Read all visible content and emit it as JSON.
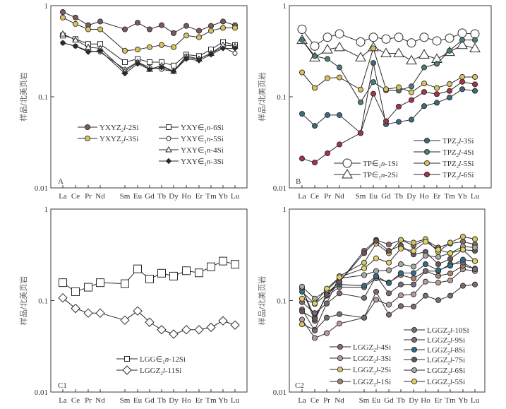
{
  "figure": {
    "y_axis_title": "样品/北美页岩"
  },
  "chart_data": [
    {
      "id": "A",
      "type": "line",
      "panel_label": "A",
      "yscale": "log",
      "ylim": [
        0.01,
        1
      ],
      "yticks": [
        "0.01",
        "0.1",
        "1"
      ],
      "ylabel": "样品/北美页岩",
      "xlabel": "",
      "categories": [
        "La",
        "Ce",
        "Pr",
        "Nd",
        "Sm",
        "Eu",
        "Gd",
        "Tb",
        "Dy",
        "Ho",
        "Er",
        "Tm",
        "Yb",
        "Lu"
      ],
      "legend_position": "center",
      "series": [
        {
          "name": "YXYZ2l-2Si",
          "label_parts": [
            "YXYZ",
            "2",
            "l",
            "-2Si"
          ],
          "marker": "circle-filled",
          "color": "#7a5a5c",
          "values": [
            0.85,
            0.74,
            0.61,
            0.67,
            0.55,
            0.65,
            0.55,
            0.61,
            0.5,
            0.6,
            0.53,
            0.6,
            0.67,
            0.61
          ]
        },
        {
          "name": "YXYZ2l-3Si",
          "label_parts": [
            "YXYZ",
            "2",
            "l",
            "-3Si"
          ],
          "marker": "circle-filled",
          "color": "#d9c25a",
          "values": [
            0.74,
            0.63,
            0.55,
            0.55,
            0.32,
            0.33,
            0.35,
            0.37,
            0.35,
            0.47,
            0.45,
            0.53,
            0.57,
            0.57
          ]
        },
        {
          "name": "YXY∈1n-6Si",
          "label_parts": [
            "YXY∈",
            "1",
            "n",
            "-6Si"
          ],
          "marker": "square-open",
          "color": "#ffffff",
          "values": [
            0.47,
            0.43,
            0.38,
            0.38,
            0.24,
            0.26,
            0.24,
            0.24,
            0.22,
            0.29,
            0.28,
            0.33,
            0.4,
            0.37
          ]
        },
        {
          "name": "YXY∈1n-5Si",
          "label_parts": [
            "YXY∈",
            "1",
            "n",
            "-5Si"
          ],
          "marker": "circle-open",
          "color": "#ffffff",
          "values": [
            0.39,
            0.36,
            0.32,
            0.31,
            0.2,
            0.24,
            0.21,
            0.2,
            0.19,
            0.28,
            0.26,
            0.3,
            0.35,
            0.3
          ]
        },
        {
          "name": "YXY∈1n-4Si",
          "label_parts": [
            "YXY∈",
            "1",
            "n",
            "-4Si"
          ],
          "marker": "triangle-open",
          "color": "#ffffff",
          "values": [
            0.49,
            0.42,
            0.35,
            0.34,
            0.19,
            0.24,
            0.2,
            0.22,
            0.19,
            0.27,
            0.26,
            0.3,
            0.37,
            0.36
          ]
        },
        {
          "name": "YXY∈1n-3Si",
          "label_parts": [
            "YXY∈",
            "1",
            "n",
            "-3Si"
          ],
          "marker": "diamond-filled",
          "color": "#2a2a2a",
          "values": [
            0.39,
            0.36,
            0.31,
            0.32,
            0.18,
            0.23,
            0.2,
            0.21,
            0.19,
            0.26,
            0.25,
            0.29,
            0.34,
            0.34
          ]
        }
      ]
    },
    {
      "id": "B",
      "type": "line",
      "panel_label": "B",
      "yscale": "log",
      "ylim": [
        0.01,
        1
      ],
      "yticks": [
        "0.01",
        "0.1",
        "1"
      ],
      "ylabel": "样品/北美页岩",
      "xlabel": "",
      "categories": [
        "La",
        "Ce",
        "Pr",
        "Nd",
        "Sm",
        "Eu",
        "Gd",
        "Tb",
        "Dy",
        "Ho",
        "Er",
        "Tm",
        "Yb",
        "Lu"
      ],
      "legend_position": "bottom-right",
      "series": [
        {
          "name": "TP∈1n-1Si",
          "label_parts": [
            "TP∈",
            "1",
            "n",
            "-1Si"
          ],
          "marker": "circle-open-large",
          "color": "#ffffff",
          "values": [
            0.55,
            0.36,
            0.45,
            0.49,
            0.4,
            0.45,
            0.43,
            0.45,
            0.39,
            0.45,
            0.41,
            0.44,
            0.5,
            0.49
          ]
        },
        {
          "name": "TP∈1n-2Si",
          "label_parts": [
            "TP∈",
            "1",
            "n",
            "-2Si"
          ],
          "marker": "triangle-open-large",
          "color": "#ffffff",
          "values": [
            0.42,
            0.27,
            0.33,
            0.35,
            0.27,
            0.35,
            0.3,
            0.3,
            0.25,
            0.29,
            0.26,
            0.31,
            0.37,
            0.34
          ]
        },
        {
          "name": "TPZ2l-3Si",
          "label_parts": [
            "TPZ",
            "2",
            "l",
            "-3Si"
          ],
          "marker": "circle-filled",
          "color": "#3b6c78",
          "values": [
            0.065,
            0.048,
            0.063,
            0.063,
            0.04,
            0.235,
            0.05,
            0.053,
            0.056,
            0.079,
            0.086,
            0.098,
            0.121,
            0.116
          ]
        },
        {
          "name": "TPZ2l-4Si",
          "label_parts": [
            "TPZ",
            "2",
            "l",
            "-4Si"
          ],
          "marker": "circle-filled",
          "color": "#4a7d80",
          "values": [
            0.42,
            0.28,
            0.26,
            0.21,
            0.087,
            0.145,
            0.118,
            0.117,
            0.13,
            0.21,
            0.23,
            0.32,
            0.42,
            0.42
          ]
        },
        {
          "name": "TPZ2l-5Si",
          "label_parts": [
            "TPZ",
            "2",
            "l",
            "-5Si"
          ],
          "marker": "circle-filled",
          "color": "#d9c25a",
          "values": [
            0.185,
            0.125,
            0.16,
            0.163,
            0.12,
            0.34,
            0.121,
            0.127,
            0.112,
            0.14,
            0.125,
            0.138,
            0.165,
            0.165
          ]
        },
        {
          "name": "TPZ2l-6Si",
          "label_parts": [
            "TPZ",
            "2",
            "l",
            "-6Si"
          ],
          "marker": "circle-filled",
          "color": "#a3344a",
          "values": [
            0.021,
            0.019,
            0.024,
            0.03,
            0.04,
            0.108,
            0.054,
            0.078,
            0.092,
            0.113,
            0.107,
            0.116,
            0.146,
            0.137
          ]
        }
      ]
    },
    {
      "id": "C1",
      "type": "line",
      "panel_label": "C1",
      "yscale": "log",
      "ylim": [
        0.01,
        1
      ],
      "yticks": [
        "0.01",
        "0.1",
        "1"
      ],
      "ylabel": "样品/北美页岩",
      "xlabel": "",
      "categories": [
        "La",
        "Ce",
        "Pr",
        "Nd",
        "Sm",
        "Eu",
        "Gd",
        "Tb",
        "Dy",
        "Ho",
        "Er",
        "Tm",
        "Yb",
        "Lu"
      ],
      "legend_position": "bottom-center",
      "series": [
        {
          "name": "LGG∈1n-12Si",
          "label_parts": [
            "LGG∈",
            "1",
            "n",
            "-12Si"
          ],
          "marker": "square-open-large",
          "color": "#ffffff",
          "values": [
            0.157,
            0.125,
            0.14,
            0.157,
            0.153,
            0.222,
            0.172,
            0.199,
            0.185,
            0.212,
            0.201,
            0.234,
            0.27,
            0.249
          ]
        },
        {
          "name": "LGGZ2l-11Si",
          "label_parts": [
            "LGGZ",
            "2",
            "l",
            "-11Si"
          ],
          "marker": "diamond-open",
          "color": "#ffffff",
          "values": [
            0.107,
            0.082,
            0.073,
            0.073,
            0.061,
            0.077,
            0.058,
            0.048,
            0.043,
            0.048,
            0.048,
            0.051,
            0.06,
            0.054
          ]
        }
      ]
    },
    {
      "id": "C2",
      "type": "line",
      "panel_label": "C2",
      "yscale": "log",
      "ylim": [
        0.01,
        1
      ],
      "yticks": [
        "0.01",
        "0.1",
        "1"
      ],
      "ylabel": "样品/北美页岩",
      "xlabel": "",
      "categories": [
        "La",
        "Ce",
        "Pr",
        "Nd",
        "Sm",
        "Eu",
        "Gd",
        "Tb",
        "Dy",
        "Ho",
        "Er",
        "Tm",
        "Yb",
        "Lu"
      ],
      "legend_position": "bottom-right",
      "series": [
        {
          "name": "LGGZ2l-4Si",
          "label_parts": [
            "LGGZ",
            "2",
            "l",
            "-4Si"
          ],
          "marker": "circle-filled",
          "color": "#8c6a62",
          "values": [
            0.135,
            0.06,
            0.12,
            0.16,
            0.35,
            0.46,
            0.41,
            0.46,
            0.4,
            0.46,
            0.38,
            0.42,
            0.44,
            0.41
          ]
        },
        {
          "name": "LGGZ2l-3Si",
          "label_parts": [
            "LGGZ",
            "2",
            "l",
            "-3Si"
          ],
          "marker": "circle-filled",
          "color": "#b79a98",
          "values": [
            0.062,
            0.039,
            0.044,
            0.056,
            0.065,
            0.102,
            0.09,
            0.114,
            0.117,
            0.161,
            0.157,
            0.166,
            0.22,
            0.21
          ]
        },
        {
          "name": "LGGZ2l-2Si",
          "label_parts": [
            "LGGZ",
            "2",
            "l",
            "-2Si"
          ],
          "marker": "circle-filled",
          "color": "#d6c660",
          "values": [
            0.055,
            0.048,
            0.093,
            0.185,
            0.26,
            0.42,
            0.33,
            0.46,
            0.43,
            0.47,
            0.34,
            0.43,
            0.5,
            0.47
          ]
        },
        {
          "name": "LGGZ2l-1Si",
          "label_parts": [
            "LGGZ",
            "2",
            "l",
            "-1Si"
          ],
          "marker": "circle-filled",
          "color": "#a78272",
          "values": [
            0.135,
            0.065,
            0.113,
            0.14,
            0.14,
            0.175,
            0.158,
            0.19,
            0.175,
            0.21,
            0.186,
            0.198,
            0.24,
            0.224
          ]
        },
        {
          "name": "LGGZ2l-10Si",
          "label_parts": [
            "LGGZ",
            "2",
            "l",
            "-10Si"
          ],
          "marker": "circle-filled",
          "color": "#7e6c6c",
          "values": [
            0.08,
            0.047,
            0.065,
            0.071,
            0.065,
            0.125,
            0.07,
            0.087,
            0.086,
            0.113,
            0.101,
            0.113,
            0.145,
            0.15
          ]
        },
        {
          "name": "LGGZ2l-9Si",
          "label_parts": [
            "LGGZ",
            "2",
            "l",
            "-9Si"
          ],
          "marker": "circle-filled",
          "color": "#7a6a7c",
          "values": [
            0.096,
            0.073,
            0.093,
            0.12,
            0.107,
            0.185,
            0.12,
            0.15,
            0.15,
            0.21,
            0.21,
            0.25,
            0.26,
            0.22
          ]
        },
        {
          "name": "LGGZ2l-8Si",
          "label_parts": [
            "LGGZ",
            "2",
            "l",
            "-8Si"
          ],
          "marker": "circle-filled",
          "color": "#2f6f86",
          "values": [
            0.125,
            0.092,
            0.117,
            0.15,
            0.145,
            0.185,
            0.155,
            0.2,
            0.2,
            0.25,
            0.215,
            0.24,
            0.28,
            0.27
          ]
        },
        {
          "name": "LGGZ2l-7Si",
          "label_parts": [
            "LGGZ",
            "2",
            "l",
            "-7Si"
          ],
          "marker": "circle-filled",
          "color": "#6b5658",
          "values": [
            0.076,
            0.063,
            0.115,
            0.16,
            0.33,
            0.45,
            0.35,
            0.4,
            0.32,
            0.34,
            0.25,
            0.285,
            0.36,
            0.35
          ]
        },
        {
          "name": "LGGZ2l-6Si",
          "label_parts": [
            "LGGZ",
            "2",
            "l",
            "-6Si"
          ],
          "marker": "circle-filled",
          "color": "#a4aba0",
          "values": [
            0.142,
            0.105,
            0.13,
            0.175,
            0.19,
            0.21,
            0.215,
            0.25,
            0.235,
            0.31,
            0.3,
            0.33,
            0.39,
            0.38
          ]
        },
        {
          "name": "LGGZ2l-5Si",
          "label_parts": [
            "LGGZ",
            "2",
            "l",
            "-5Si"
          ],
          "marker": "circle-filled",
          "color": "#e2d060",
          "values": [
            0.105,
            0.093,
            0.135,
            0.18,
            0.225,
            0.29,
            0.26,
            0.37,
            0.35,
            0.44,
            0.36,
            0.33,
            0.36,
            0.27
          ]
        }
      ]
    }
  ]
}
